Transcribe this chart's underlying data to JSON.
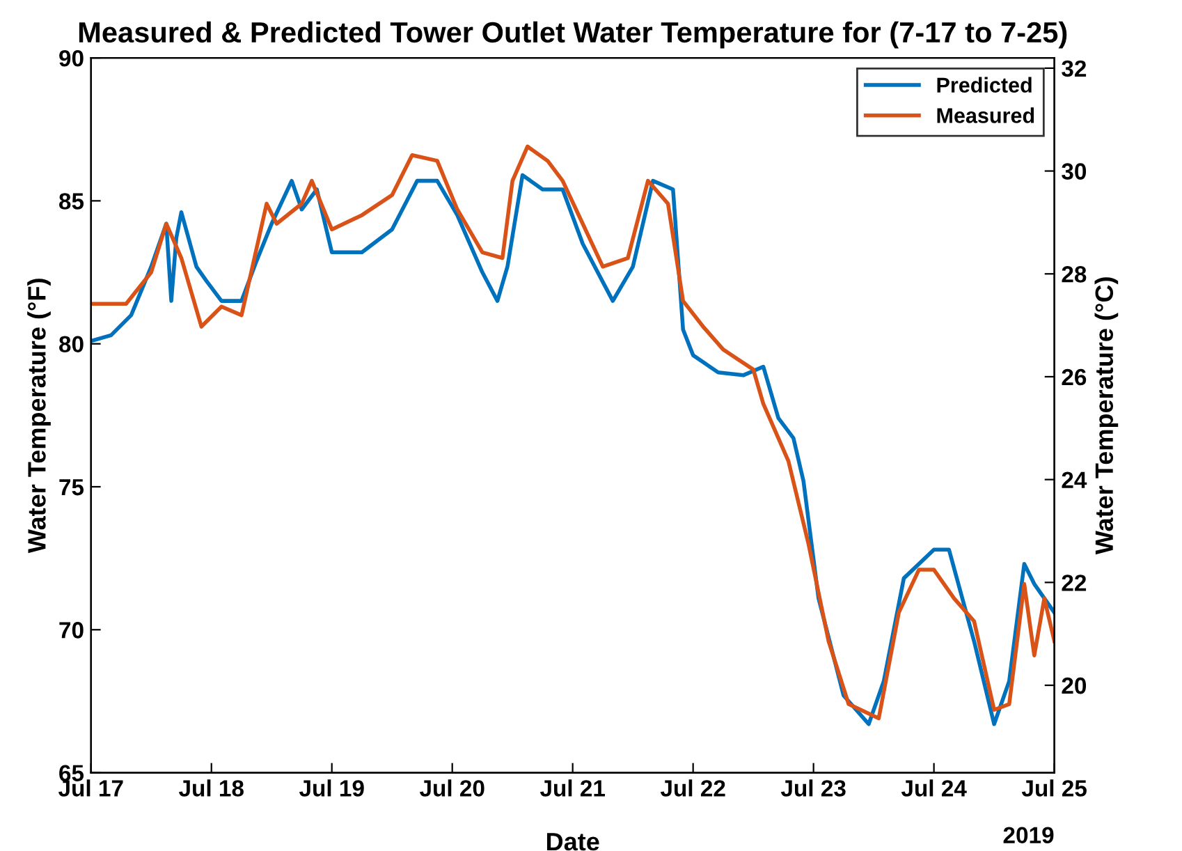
{
  "chart_data": {
    "type": "line",
    "title": "Measured & Predicted Tower Outlet Water Temperature for (7-17 to 7-25)",
    "xlabel": "Date",
    "ylabel": "Water Temperature (°F)",
    "y2label": "Water Temperature (°C)",
    "xlim": [
      "2019-07-17",
      "2019-07-25"
    ],
    "xticks": [
      {
        "value": "2019-07-17",
        "label": "Jul 17"
      },
      {
        "value": "2019-07-18",
        "label": "Jul 18"
      },
      {
        "value": "2019-07-19",
        "label": "Jul 19"
      },
      {
        "value": "2019-07-20",
        "label": "Jul 20"
      },
      {
        "value": "2019-07-21",
        "label": "Jul 21"
      },
      {
        "value": "2019-07-22",
        "label": "Jul 22"
      },
      {
        "value": "2019-07-23",
        "label": "Jul 23"
      },
      {
        "value": "2019-07-24",
        "label": "Jul 24"
      },
      {
        "value": "2019-07-25",
        "label": "Jul 25"
      }
    ],
    "ylim": [
      65,
      90
    ],
    "yticks": [
      65,
      70,
      75,
      80,
      85,
      90
    ],
    "y2lim": [
      18.3,
      32.2
    ],
    "y2ticks": [
      20,
      22,
      24,
      26,
      28,
      30,
      32
    ],
    "annotations": [
      "2019"
    ],
    "legend": "top right",
    "grid": false,
    "marker": "none",
    "line_style": "solid",
    "series": [
      {
        "name": "Predicted",
        "color": "#0072bd",
        "x": [
          "2019-07-17T00:00",
          "2019-07-17T04:00",
          "2019-07-17T08:00",
          "2019-07-17T12:00",
          "2019-07-17T15:00",
          "2019-07-17T16:00",
          "2019-07-17T17:00",
          "2019-07-17T18:00",
          "2019-07-17T21:00",
          "2019-07-17T23:00",
          "2019-07-18T02:00",
          "2019-07-18T06:00",
          "2019-07-18T09:00",
          "2019-07-18T12:00",
          "2019-07-18T16:00",
          "2019-07-18T18:00",
          "2019-07-18T21:00",
          "2019-07-19T00:00",
          "2019-07-19T06:00",
          "2019-07-19T12:00",
          "2019-07-19T17:00",
          "2019-07-19T21:00",
          "2019-07-20T01:00",
          "2019-07-20T06:00",
          "2019-07-20T09:00",
          "2019-07-20T11:00",
          "2019-07-20T14:00",
          "2019-07-20T18:00",
          "2019-07-20T22:00",
          "2019-07-21T02:00",
          "2019-07-21T08:00",
          "2019-07-21T12:00",
          "2019-07-21T16:00",
          "2019-07-21T20:00",
          "2019-07-21T22:00",
          "2019-07-22T00:00",
          "2019-07-22T05:00",
          "2019-07-22T10:00",
          "2019-07-22T14:00",
          "2019-07-22T17:00",
          "2019-07-22T20:00",
          "2019-07-22T22:00",
          "2019-07-23T01:00",
          "2019-07-23T06:00",
          "2019-07-23T11:00",
          "2019-07-23T14:00",
          "2019-07-23T18:00",
          "2019-07-24T00:00",
          "2019-07-24T03:00",
          "2019-07-24T08:00",
          "2019-07-24T12:00",
          "2019-07-24T15:00",
          "2019-07-24T18:00",
          "2019-07-24T20:00",
          "2019-07-25T00:00"
        ],
        "values": [
          80.1,
          80.3,
          81.0,
          82.7,
          84.2,
          81.5,
          83.7,
          84.6,
          82.7,
          82.2,
          81.5,
          81.5,
          82.9,
          84.2,
          85.7,
          84.7,
          85.4,
          83.2,
          83.2,
          84.0,
          85.7,
          85.7,
          84.5,
          82.5,
          81.5,
          82.7,
          85.9,
          85.4,
          85.4,
          83.5,
          81.5,
          82.7,
          85.7,
          85.4,
          80.5,
          79.6,
          79.0,
          78.9,
          79.2,
          77.4,
          76.7,
          75.2,
          71.1,
          67.7,
          66.7,
          68.2,
          71.8,
          72.8,
          72.8,
          69.6,
          66.7,
          68.2,
          72.3,
          71.6,
          70.6
        ]
      },
      {
        "name": "Measured",
        "color": "#d95319",
        "x": [
          "2019-07-17T00:00",
          "2019-07-17T07:00",
          "2019-07-17T12:00",
          "2019-07-17T15:00",
          "2019-07-17T18:00",
          "2019-07-17T22:00",
          "2019-07-18T02:00",
          "2019-07-18T06:00",
          "2019-07-18T11:00",
          "2019-07-18T13:00",
          "2019-07-18T18:00",
          "2019-07-18T20:00",
          "2019-07-19T00:00",
          "2019-07-19T06:00",
          "2019-07-19T12:00",
          "2019-07-19T16:00",
          "2019-07-19T21:00",
          "2019-07-20T01:00",
          "2019-07-20T06:00",
          "2019-07-20T10:00",
          "2019-07-20T12:00",
          "2019-07-20T15:00",
          "2019-07-20T19:00",
          "2019-07-20T22:00",
          "2019-07-21T02:00",
          "2019-07-21T06:00",
          "2019-07-21T11:00",
          "2019-07-21T15:00",
          "2019-07-21T19:00",
          "2019-07-21T22:00",
          "2019-07-22T02:00",
          "2019-07-22T06:00",
          "2019-07-22T12:00",
          "2019-07-22T14:00",
          "2019-07-22T19:00",
          "2019-07-22T23:00",
          "2019-07-23T03:00",
          "2019-07-23T07:00",
          "2019-07-23T13:00",
          "2019-07-23T17:00",
          "2019-07-23T21:00",
          "2019-07-24T00:00",
          "2019-07-24T04:00",
          "2019-07-24T08:00",
          "2019-07-24T12:00",
          "2019-07-24T15:00",
          "2019-07-24T18:00",
          "2019-07-24T20:00",
          "2019-07-24T22:00",
          "2019-07-25T00:00"
        ],
        "values": [
          81.4,
          81.4,
          82.5,
          84.2,
          83.0,
          80.6,
          81.3,
          81.0,
          84.9,
          84.2,
          84.9,
          85.7,
          84.0,
          84.5,
          85.2,
          86.6,
          86.4,
          84.7,
          83.2,
          83.0,
          85.7,
          86.9,
          86.4,
          85.7,
          84.2,
          82.7,
          83.0,
          85.7,
          84.9,
          81.5,
          80.6,
          79.8,
          79.1,
          77.9,
          75.9,
          73.0,
          69.6,
          67.4,
          66.9,
          70.6,
          72.1,
          72.1,
          71.1,
          70.3,
          67.2,
          67.4,
          71.6,
          69.1,
          71.1,
          69.6
        ]
      }
    ]
  }
}
